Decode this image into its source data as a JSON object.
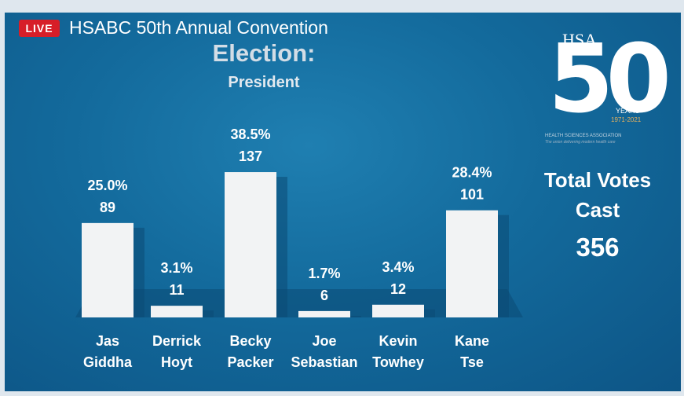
{
  "stream": {
    "live_badge": "LIVE",
    "title": "HSABC 50th Annual Convention"
  },
  "heading": "Election:",
  "subheading": "President",
  "logo": {
    "letters": "HSA",
    "number": "50",
    "years": "YEARS",
    "dates": "1971-2021",
    "association": "HEALTH SCIENCES ASSOCIATION",
    "tagline": "The union delivering modern health care"
  },
  "totals": {
    "label": "Total Votes Cast",
    "value": "356"
  },
  "colors": {
    "background": "#136a9c",
    "bar": "#f2f3f4",
    "live": "#d71e28",
    "heading": "#d3dde6"
  },
  "chart_data": {
    "type": "bar",
    "categories": [
      [
        "Jas",
        "Giddha"
      ],
      [
        "Derrick",
        "Hoyt"
      ],
      [
        "Becky",
        "Packer"
      ],
      [
        "Joe",
        "Sebastian"
      ],
      [
        "Kevin",
        "Towhey"
      ],
      [
        "Kane",
        "Tse"
      ]
    ],
    "values": [
      89,
      11,
      137,
      6,
      12,
      101
    ],
    "percent_labels": [
      "25.0%",
      "3.1%",
      "38.5%",
      "1.7%",
      "3.4%",
      "28.4%"
    ],
    "value_labels": [
      "89",
      "11",
      "137",
      "6",
      "12",
      "101"
    ],
    "title": "Election:",
    "subtitle": "President",
    "grid": false
  }
}
